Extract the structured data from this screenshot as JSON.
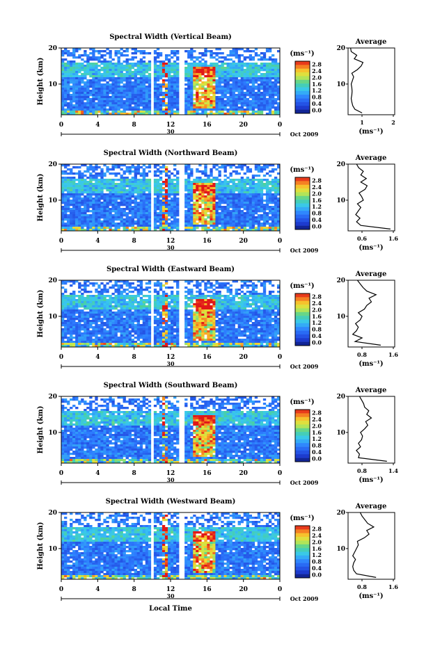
{
  "x_axis": {
    "ticks": [
      "0",
      "4",
      "8",
      "12",
      "16",
      "20",
      "0"
    ],
    "date_marker": "30",
    "date_label": "Oct 2009",
    "xlabel": "Local Time"
  },
  "colorbar": {
    "unit": "(ms⁻¹)",
    "ticks": [
      "0.0",
      "0.4",
      "0.8",
      "1.2",
      "1.6",
      "2.0",
      "2.4",
      "2.8"
    ]
  },
  "average_title": "Average",
  "average_unit": "(ms⁻¹)",
  "chart_data": [
    {
      "type": "heatmap",
      "title": "Spectral Width (Vertical Beam)",
      "ylabel": "Height (km)",
      "y_ticks": [
        "20",
        "10"
      ],
      "x_range_hours": [
        0,
        24
      ],
      "ylim_km": [
        1.5,
        20
      ],
      "value_range_ms": [
        0.0,
        2.8
      ],
      "profile": {
        "title": "Average",
        "x_ticks": [
          "1",
          "2"
        ],
        "xlim": [
          0.5,
          2.0
        ],
        "y_ticks": [
          "20",
          "10"
        ],
        "height_km": [
          2,
          3,
          4,
          5,
          6,
          7,
          8,
          9,
          10,
          11,
          12,
          13,
          14,
          15,
          16,
          17,
          18,
          19,
          20
        ],
        "values": [
          0.95,
          0.72,
          0.65,
          0.62,
          0.6,
          0.62,
          0.63,
          0.62,
          0.6,
          0.64,
          0.68,
          0.62,
          0.8,
          0.92,
          0.98,
          0.7,
          0.78,
          0.6,
          0.58
        ]
      }
    },
    {
      "type": "heatmap",
      "title": "Spectral Width (Northward Beam)",
      "ylabel": "Height (km)",
      "y_ticks": [
        "20",
        "10"
      ],
      "x_range_hours": [
        0,
        24
      ],
      "ylim_km": [
        1.5,
        20
      ],
      "value_range_ms": [
        0.0,
        2.8
      ],
      "profile": {
        "title": "Average",
        "x_ticks": [
          "0.6",
          "1.6"
        ],
        "xlim": [
          0.5,
          1.6
        ],
        "y_ticks": [
          "20",
          "10"
        ],
        "height_km": [
          2,
          3,
          4,
          5,
          6,
          7,
          8,
          9,
          10,
          11,
          12,
          13,
          14,
          15,
          16,
          17,
          18,
          19,
          20
        ],
        "values": [
          1.5,
          0.8,
          0.7,
          0.78,
          0.68,
          0.74,
          0.8,
          0.72,
          0.86,
          0.82,
          0.76,
          0.9,
          0.95,
          0.8,
          0.93,
          0.8,
          0.86,
          0.75,
          0.7
        ]
      }
    },
    {
      "type": "heatmap",
      "title": "Spectral Width (Eastward Beam)",
      "ylabel": "Height (km)",
      "y_ticks": [
        "20",
        "10"
      ],
      "x_range_hours": [
        0,
        24
      ],
      "ylim_km": [
        1.5,
        20
      ],
      "value_range_ms": [
        0.0,
        2.8
      ],
      "profile": {
        "title": "Average",
        "x_ticks": [
          "0.8",
          "1.6"
        ],
        "xlim": [
          0.6,
          1.6
        ],
        "y_ticks": [
          "20",
          "10"
        ],
        "height_km": [
          2,
          3,
          4,
          5,
          6,
          7,
          8,
          9,
          10,
          11,
          12,
          13,
          14,
          15,
          16,
          17,
          18,
          19,
          20
        ],
        "values": [
          1.3,
          0.75,
          0.9,
          0.7,
          0.78,
          0.82,
          0.76,
          0.86,
          0.9,
          0.82,
          0.95,
          1.0,
          1.1,
          1.05,
          1.2,
          1.0,
          0.92,
          0.86,
          0.8
        ]
      }
    },
    {
      "type": "heatmap",
      "title": "Spectral Width (Southward Beam)",
      "ylabel": "Height (km)",
      "y_ticks": [
        "20",
        "10"
      ],
      "x_range_hours": [
        0,
        24
      ],
      "ylim_km": [
        1.5,
        20
      ],
      "value_range_ms": [
        0.0,
        2.8
      ],
      "profile": {
        "title": "Average",
        "x_ticks": [
          "0.8",
          "1.4"
        ],
        "xlim": [
          0.6,
          1.5
        ],
        "y_ticks": [
          "20",
          "10"
        ],
        "height_km": [
          2,
          3,
          4,
          5,
          6,
          7,
          8,
          9,
          10,
          11,
          12,
          13,
          14,
          15,
          16,
          17,
          18,
          19,
          20
        ],
        "values": [
          1.35,
          0.8,
          0.82,
          0.76,
          0.84,
          0.8,
          0.86,
          0.88,
          0.84,
          0.92,
          0.98,
          0.94,
          1.05,
          0.96,
          1.0,
          0.92,
          0.9,
          0.86,
          0.82
        ]
      }
    },
    {
      "type": "heatmap",
      "title": "Spectral Width (Westward Beam)",
      "ylabel": "Height (km)",
      "y_ticks": [
        "20",
        "10"
      ],
      "x_range_hours": [
        0,
        24
      ],
      "ylim_km": [
        1.5,
        20
      ],
      "value_range_ms": [
        0.0,
        2.8
      ],
      "profile": {
        "title": "Average",
        "x_ticks": [
          "0.8",
          "1.6"
        ],
        "xlim": [
          0.6,
          1.6
        ],
        "y_ticks": [
          "20",
          "10"
        ],
        "height_km": [
          2,
          3,
          4,
          5,
          6,
          7,
          8,
          9,
          10,
          11,
          12,
          13,
          14,
          15,
          16,
          17,
          18,
          19,
          20
        ],
        "values": [
          1.2,
          0.78,
          0.72,
          0.7,
          0.72,
          0.76,
          0.7,
          0.74,
          0.78,
          0.82,
          0.8,
          0.95,
          1.05,
          1.0,
          1.15,
          1.02,
          0.96,
          0.9,
          0.86
        ]
      }
    }
  ]
}
